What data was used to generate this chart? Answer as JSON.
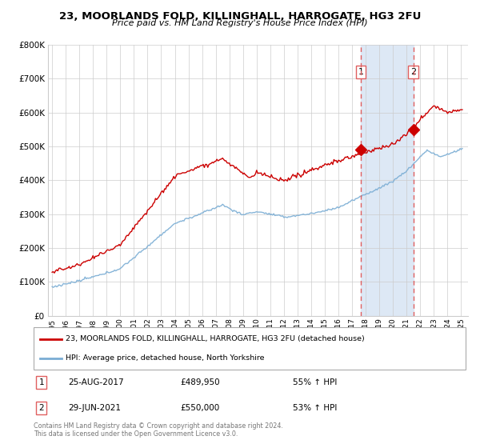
{
  "title": "23, MOORLANDS FOLD, KILLINGHALL, HARROGATE, HG3 2FU",
  "subtitle": "Price paid vs. HM Land Registry's House Price Index (HPI)",
  "legend_line1": "23, MOORLANDS FOLD, KILLINGHALL, HARROGATE, HG3 2FU (detached house)",
  "legend_line2": "HPI: Average price, detached house, North Yorkshire",
  "footer": "Contains HM Land Registry data © Crown copyright and database right 2024.\nThis data is licensed under the Open Government Licence v3.0.",
  "sale1_label": "1",
  "sale1_date": "25-AUG-2017",
  "sale1_price": "£489,950",
  "sale1_hpi": "55% ↑ HPI",
  "sale1_year": 2017.65,
  "sale1_value": 489950,
  "sale2_label": "2",
  "sale2_date": "29-JUN-2021",
  "sale2_price": "£550,000",
  "sale2_hpi": "53% ↑ HPI",
  "sale2_year": 2021.49,
  "sale2_value": 550000,
  "red_color": "#cc0000",
  "blue_color": "#7aadd4",
  "vline_color": "#e06060",
  "highlight_bg": "#dde8f5",
  "ylim": [
    0,
    800000
  ],
  "yticks": [
    0,
    100000,
    200000,
    300000,
    400000,
    500000,
    600000,
    700000,
    800000
  ],
  "xlim_start": 1994.7,
  "xlim_end": 2025.5
}
